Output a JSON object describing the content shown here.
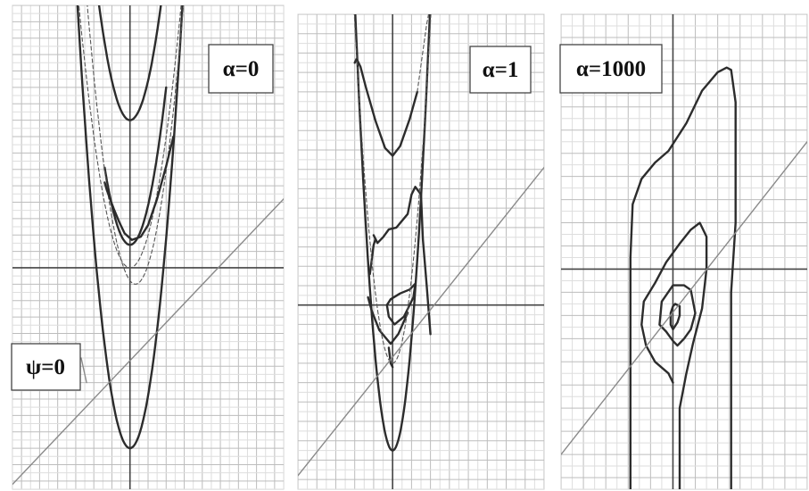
{
  "figure": {
    "panel_count": 3
  },
  "chart_data": [
    {
      "type": "line",
      "panel_label": "α=0",
      "extra_label": "ψ=0",
      "grid": true,
      "xlim": [
        -6.5,
        8.5
      ],
      "ylim": [
        -13.5,
        16
      ],
      "series": [
        {
          "style": "dark",
          "kind": "parabola",
          "vertex": [
            0,
            9
          ],
          "a": 0.6,
          "x_range": [
            -1.8,
            2.5
          ]
        },
        {
          "style": "dark",
          "kind": "parabola",
          "vertex": [
            0,
            1.4
          ],
          "a": 0.6,
          "x_range": [
            -1.4,
            2.0
          ]
        },
        {
          "style": "dark",
          "kind": "parabola",
          "vertex": [
            0,
            -11
          ],
          "a": 0.8,
          "x_range": [
            -3.7,
            3.1
          ]
        },
        {
          "style": "dashed",
          "kind": "parabola",
          "vertex": [
            0,
            0
          ],
          "a": 0.5,
          "x_range": [
            -3.2,
            3.2
          ]
        },
        {
          "style": "dashed",
          "kind": "parabola",
          "vertex": [
            0.3,
            -1
          ],
          "a": 0.6,
          "x_range": [
            -2.6,
            3.0
          ]
        },
        {
          "style": "dark",
          "kind": "curve",
          "points": [
            [
              -1.4,
              5.2
            ],
            [
              -1.3,
              4.8
            ],
            [
              -1.1,
              4.2
            ],
            [
              -0.9,
              3.6
            ],
            [
              -0.6,
              2.8
            ],
            [
              -0.3,
              2.1
            ],
            [
              0.1,
              1.7
            ],
            [
              0.6,
              1.9
            ],
            [
              1.0,
              2.6
            ],
            [
              1.5,
              4.2
            ],
            [
              2.0,
              6.2
            ],
            [
              2.4,
              8.0
            ]
          ]
        },
        {
          "style": "light",
          "kind": "line",
          "points": [
            [
              -6.5,
              -13.2
            ],
            [
              8.5,
              4.2
            ]
          ]
        },
        {
          "style": "light",
          "kind": "line",
          "points": [
            [
              -2.7,
              -5.5
            ],
            [
              -2.4,
              -7.0
            ]
          ]
        }
      ]
    },
    {
      "type": "line",
      "panel_label": "α=1",
      "grid": true,
      "xlim": [
        -5,
        8
      ],
      "ylim": [
        -9.5,
        15
      ],
      "series": [
        {
          "style": "dark",
          "kind": "curve",
          "points": [
            [
              -2.0,
              12.5
            ],
            [
              -1.9,
              12.7
            ],
            [
              -1.7,
              12.3
            ],
            [
              -1.4,
              11.2
            ],
            [
              -0.9,
              9.5
            ],
            [
              -0.4,
              8.1
            ],
            [
              0,
              7.7
            ],
            [
              0.4,
              8.2
            ],
            [
              0.9,
              9.6
            ],
            [
              1.3,
              11.0
            ]
          ]
        },
        {
          "style": "dark",
          "kind": "curve",
          "points": [
            [
              -1.0,
              3.6
            ],
            [
              -0.8,
              3.2
            ],
            [
              -0.5,
              3.5
            ],
            [
              -0.2,
              3.9
            ],
            [
              0.2,
              4.0
            ],
            [
              0.8,
              4.7
            ],
            [
              1.0,
              5.7
            ],
            [
              1.2,
              6.1
            ],
            [
              1.5,
              5.7
            ],
            [
              1.6,
              3.4
            ],
            [
              1.8,
              1.0
            ],
            [
              2.0,
              -1.5
            ]
          ]
        },
        {
          "style": "dark",
          "kind": "curve",
          "points": [
            [
              -1.3,
              0.4
            ],
            [
              -1.1,
              -0.3
            ],
            [
              -0.7,
              -1.3
            ],
            [
              -0.1,
              -2.0
            ],
            [
              0.3,
              -1.5
            ],
            [
              0.8,
              -0.4
            ]
          ]
        },
        {
          "style": "dark",
          "kind": "curve",
          "points": [
            [
              -1.2,
              1.6
            ],
            [
              -1.0,
              3.1
            ],
            [
              -0.9,
              3.4
            ]
          ]
        },
        {
          "style": "dark",
          "kind": "curve",
          "points": [
            [
              -0.2,
              -2.2
            ],
            [
              -0.1,
              -3.0
            ],
            [
              0,
              -3.2
            ]
          ]
        },
        {
          "style": "dark",
          "kind": "closed",
          "points": [
            [
              -0.1,
              0.3
            ],
            [
              0.4,
              0.6
            ],
            [
              0.9,
              0.8
            ],
            [
              1.2,
              1.1
            ],
            [
              1.1,
              0.4
            ],
            [
              0.6,
              -0.6
            ],
            [
              0.1,
              -1.0
            ],
            [
              -0.2,
              -0.6
            ],
            [
              -0.3,
              0.0
            ]
          ]
        },
        {
          "style": "dark",
          "kind": "parabola",
          "vertex": [
            0,
            -7.5
          ],
          "a": 1.45,
          "x_range": [
            -2.4,
            2.4
          ]
        },
        {
          "style": "dashed",
          "kind": "parabola",
          "vertex": [
            0,
            -3.0
          ],
          "a": 1.1,
          "x_range": [
            -2.6,
            2.4
          ]
        },
        {
          "style": "dashed",
          "kind": "curve",
          "points": [
            [
              1.3,
              11.0
            ],
            [
              1.8,
              14.5
            ],
            [
              2.1,
              16.0
            ]
          ]
        },
        {
          "style": "light",
          "kind": "line",
          "points": [
            [
              -5,
              -8.8
            ],
            [
              8,
              7.1
            ]
          ]
        }
      ]
    },
    {
      "type": "line",
      "panel_label": "α=1000",
      "grid": true,
      "xlim": [
        -5,
        6
      ],
      "ylim": [
        -9.5,
        11
      ],
      "series": [
        {
          "style": "dark",
          "kind": "curve",
          "points": [
            [
              -1.9,
              -9.5
            ],
            [
              -1.9,
              -6.0
            ],
            [
              -1.9,
              -3.0
            ],
            [
              -1.9,
              0.5
            ],
            [
              -1.8,
              2.8
            ],
            [
              -1.4,
              3.9
            ],
            [
              -0.8,
              4.6
            ],
            [
              -0.2,
              5.1
            ],
            [
              0.6,
              6.3
            ],
            [
              1.3,
              7.7
            ],
            [
              2.0,
              8.5
            ],
            [
              2.4,
              8.7
            ],
            [
              2.6,
              8.6
            ],
            [
              2.8,
              7.2
            ],
            [
              2.8,
              5.3
            ],
            [
              2.8,
              2.0
            ],
            [
              2.6,
              -1.0
            ],
            [
              2.6,
              -3.8
            ],
            [
              2.6,
              -9.5
            ]
          ]
        },
        {
          "style": "dark",
          "kind": "curve",
          "points": [
            [
              0.3,
              -9.5
            ],
            [
              0.3,
              -6.0
            ],
            [
              0.6,
              -4.5
            ],
            [
              0.9,
              -3.2
            ],
            [
              1.3,
              -1.7
            ],
            [
              1.5,
              0.0
            ],
            [
              1.5,
              1.4
            ],
            [
              1.2,
              2.0
            ],
            [
              0.8,
              1.7
            ],
            [
              0.3,
              1.1
            ],
            [
              -0.3,
              0.3
            ],
            [
              -0.8,
              -0.6
            ],
            [
              -1.3,
              -1.4
            ],
            [
              -1.4,
              -2.4
            ],
            [
              -1.2,
              -3.3
            ],
            [
              -0.8,
              -4.0
            ],
            [
              -0.2,
              -4.5
            ],
            [
              0.0,
              -4.9
            ]
          ]
        },
        {
          "style": "dark",
          "kind": "closed",
          "points": [
            [
              0.0,
              -0.7
            ],
            [
              0.5,
              -0.7
            ],
            [
              0.8,
              -0.9
            ],
            [
              1.0,
              -1.9
            ],
            [
              0.8,
              -2.6
            ],
            [
              0.5,
              -3.0
            ],
            [
              0.2,
              -3.3
            ],
            [
              0.0,
              -3.1
            ],
            [
              -0.3,
              -2.7
            ],
            [
              -0.6,
              -2.4
            ],
            [
              -0.5,
              -1.4
            ]
          ]
        },
        {
          "style": "dark",
          "kind": "closed",
          "points": [
            [
              0.1,
              -1.5
            ],
            [
              0.3,
              -1.6
            ],
            [
              0.3,
              -2.0
            ],
            [
              0.2,
              -2.3
            ],
            [
              0.0,
              -2.6
            ],
            [
              -0.1,
              -2.4
            ],
            [
              -0.1,
              -1.9
            ],
            [
              0.0,
              -1.6
            ]
          ]
        },
        {
          "style": "light",
          "kind": "line",
          "points": [
            [
              -5,
              -8.0
            ],
            [
              6,
              5.5
            ]
          ]
        }
      ]
    }
  ]
}
